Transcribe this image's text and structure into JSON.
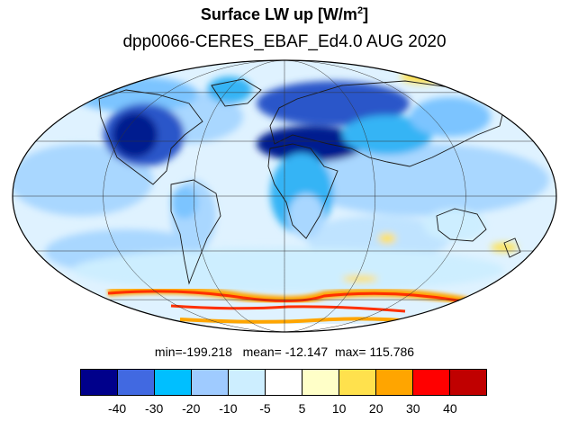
{
  "title_main": "Surface LW up [W/m",
  "title_sup": "2",
  "title_close": "]",
  "subtitle": "dpp0066-CERES_EBAF_Ed4.0  AUG 2020",
  "stats": {
    "min_label": "min=",
    "min": "-199.218",
    "mean_label": "mean=",
    "mean": "-12.147",
    "max_label": "max=",
    "max": "115.786"
  },
  "colorbar": {
    "colors": [
      "#00008b",
      "#4169e1",
      "#00bfff",
      "#9fcbff",
      "#cdeeff",
      "#ffffff",
      "#ffffc8",
      "#ffe14d",
      "#ffa500",
      "#ff0000",
      "#c00000"
    ],
    "labels": [
      "-40",
      "-30",
      "-20",
      "-10",
      "-5",
      "5",
      "10",
      "20",
      "30",
      "40"
    ]
  },
  "map": {
    "projection": "Mollweide",
    "graticule_lon_step": 60,
    "graticule_lat_step": 30,
    "field_colors": {
      "background": "#dff2ff",
      "light": "#a9d7ff",
      "medium": "#36b4f5",
      "dark": "#2a56c9",
      "darkest": "#001a8f",
      "warm": "#ffe14d",
      "hot": "#ff3000",
      "land_outline": "#1a1a1a"
    }
  }
}
